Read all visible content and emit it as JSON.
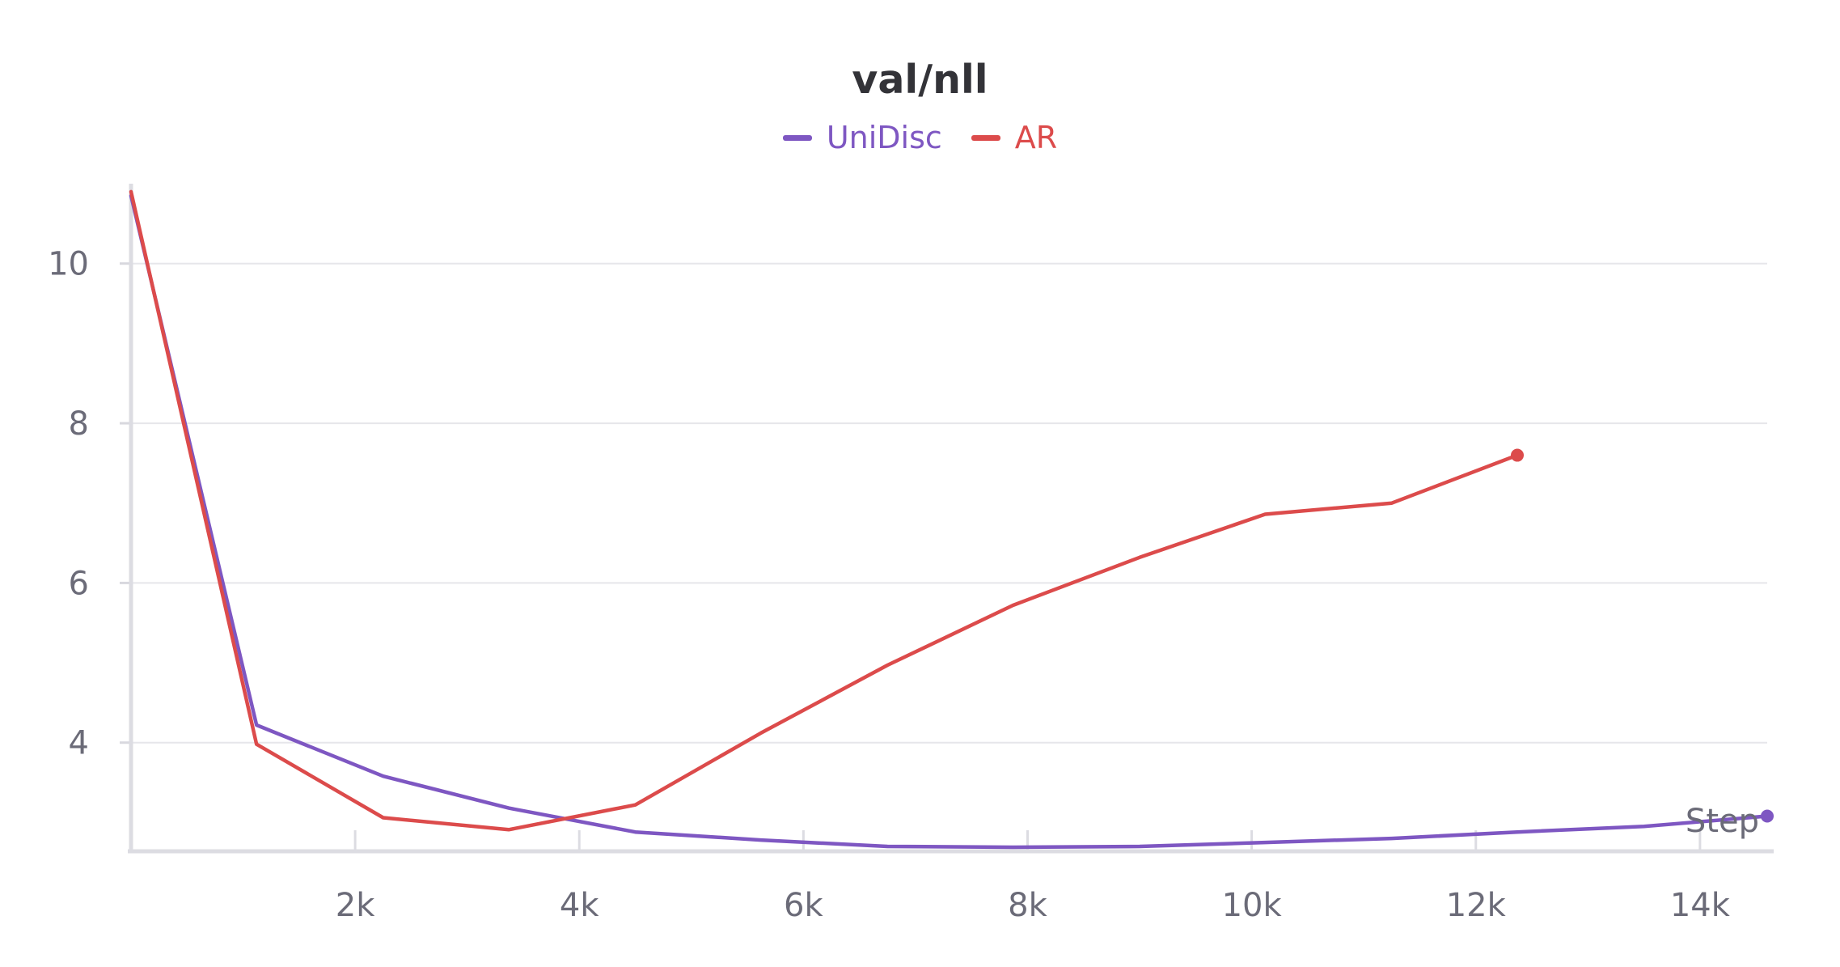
{
  "chart_data": {
    "type": "line",
    "title": "val/nll",
    "xlabel": "Step",
    "ylabel": "",
    "xlim": [
      0,
      14600
    ],
    "ylim": [
      2.7,
      10.95
    ],
    "x_ticks": [
      2000,
      4000,
      6000,
      8000,
      10000,
      12000,
      14000
    ],
    "x_tick_labels": [
      "2k",
      "4k",
      "6k",
      "8k",
      "10k",
      "12k",
      "14k"
    ],
    "y_ticks": [
      4,
      6,
      8,
      10
    ],
    "y_tick_labels": [
      "4",
      "6",
      "8",
      "10"
    ],
    "grid": "horizontal",
    "legend_position": "top-center",
    "series": [
      {
        "name": "UniDisc",
        "color": "#7e57c2",
        "x": [
          0,
          1120,
          2250,
          3370,
          4500,
          5620,
          6750,
          7870,
          9000,
          10120,
          11250,
          12370,
          13500,
          14600
        ],
        "values": [
          10.85,
          4.22,
          3.58,
          3.18,
          2.88,
          2.78,
          2.7,
          2.69,
          2.7,
          2.75,
          2.8,
          2.88,
          2.95,
          3.08
        ]
      },
      {
        "name": "AR",
        "color": "#dc4b4b",
        "x": [
          0,
          1120,
          2250,
          3370,
          4500,
          5620,
          6750,
          7870,
          9000,
          10120,
          11250,
          12370
        ],
        "values": [
          10.9,
          3.98,
          3.06,
          2.91,
          3.22,
          4.12,
          4.97,
          5.72,
          6.32,
          6.86,
          7.0,
          7.6
        ]
      }
    ]
  }
}
